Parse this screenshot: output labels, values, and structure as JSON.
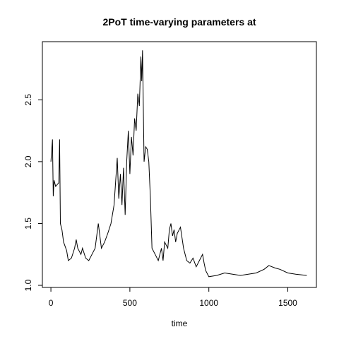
{
  "chart_data": {
    "type": "line",
    "title": "2PoT time-varying parameters at",
    "x_label": "time",
    "color": "#000000",
    "x": [
      0,
      10,
      15,
      20,
      30,
      50,
      55,
      60,
      70,
      80,
      100,
      110,
      130,
      150,
      160,
      170,
      190,
      200,
      220,
      240,
      260,
      280,
      300,
      310,
      320,
      340,
      360,
      380,
      400,
      420,
      430,
      440,
      450,
      460,
      470,
      480,
      490,
      500,
      510,
      520,
      530,
      540,
      550,
      560,
      570,
      575,
      580,
      590,
      600,
      610,
      620,
      630,
      640,
      660,
      680,
      700,
      710,
      720,
      740,
      750,
      760,
      770,
      780,
      790,
      800,
      820,
      840,
      860,
      880,
      900,
      920,
      940,
      960,
      970,
      980,
      1000,
      1050,
      1100,
      1150,
      1200,
      1250,
      1300,
      1350,
      1380,
      1420,
      1450,
      1500,
      1550,
      1620
    ],
    "values": [
      2.0,
      2.18,
      1.72,
      1.85,
      1.8,
      1.83,
      2.18,
      1.5,
      1.45,
      1.35,
      1.28,
      1.2,
      1.22,
      1.3,
      1.37,
      1.3,
      1.25,
      1.3,
      1.22,
      1.2,
      1.25,
      1.3,
      1.5,
      1.4,
      1.3,
      1.35,
      1.42,
      1.5,
      1.65,
      2.03,
      1.7,
      1.9,
      1.65,
      1.95,
      1.57,
      2.0,
      2.25,
      1.9,
      2.2,
      2.05,
      2.35,
      2.25,
      2.55,
      2.45,
      2.85,
      2.65,
      2.9,
      2.0,
      2.12,
      2.1,
      2.0,
      1.7,
      1.3,
      1.25,
      1.2,
      1.3,
      1.2,
      1.35,
      1.3,
      1.45,
      1.5,
      1.4,
      1.45,
      1.35,
      1.42,
      1.47,
      1.3,
      1.2,
      1.18,
      1.22,
      1.15,
      1.2,
      1.25,
      1.18,
      1.12,
      1.07,
      1.08,
      1.1,
      1.09,
      1.08,
      1.09,
      1.1,
      1.13,
      1.16,
      1.14,
      1.13,
      1.1,
      1.09,
      1.08
    ],
    "xlim": [
      -54,
      1681
    ],
    "ylim": [
      0.983,
      2.97
    ],
    "xticks": [
      0,
      500,
      1000,
      1500
    ],
    "yticks": [
      {
        "value": 1,
        "label": "1.0"
      },
      {
        "value": 1.5,
        "label": "1.5"
      },
      {
        "value": 2,
        "label": "2.0"
      },
      {
        "value": 2.5,
        "label": "2.5"
      }
    ]
  }
}
